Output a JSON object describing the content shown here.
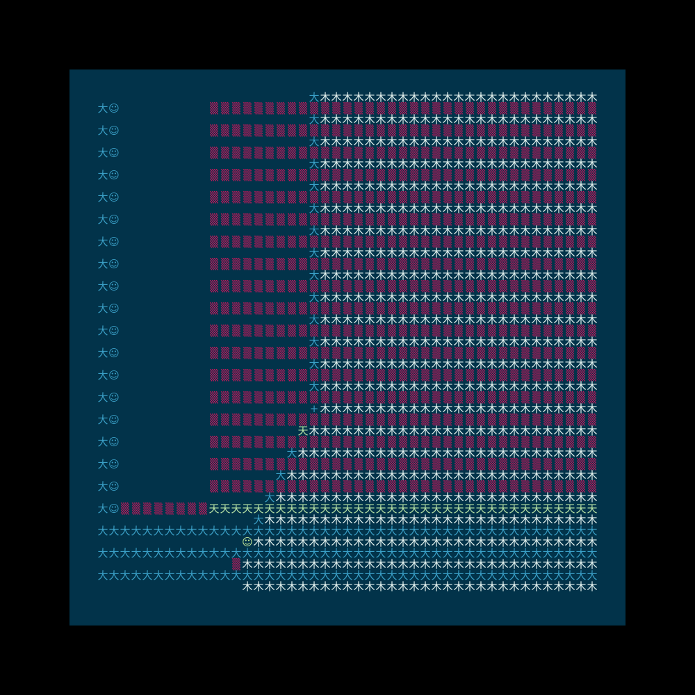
{
  "grid": {
    "background": "#000000",
    "panel": "#02334a",
    "glyph_colors": {
      "大": "#3a9fc6",
      "木": "#e4f2ef",
      "天": "#b9e4a6",
      "☺": "#c8ec9a",
      "+": "#3a9fc6",
      "▒": "#c2185b"
    },
    "rows": [
      [
        "                   ",
        "大",
        "木木木木木木木木木木木木木木木木木木木木木木木木木"
      ],
      [
        "大☺",
        "        ",
        "▒▒▒▒▒▒▒▒▒▒▒▒▒▒▒▒▒▒▒▒▒▒▒▒▒▒▒▒▒▒▒▒▒▒▒"
      ],
      [
        "                   ",
        "大",
        "木木木木木木木木木木木木木木木木木木木木木木木木木"
      ],
      [
        "大☺",
        "        ",
        "▒▒▒▒▒▒▒▒▒▒▒▒▒▒▒▒▒▒▒▒▒▒▒▒▒▒▒▒▒▒▒▒▒▒▒"
      ],
      [
        "                   ",
        "大",
        "木木木木木木木木木木木木木木木木木木木木木木木木木"
      ],
      [
        "大☺",
        "        ",
        "▒▒▒▒▒▒▒▒▒▒▒▒▒▒▒▒▒▒▒▒▒▒▒▒▒▒▒▒▒▒▒▒▒▒▒"
      ],
      [
        "                   ",
        "大",
        "木木木木木木木木木木木木木木木木木木木木木木木木木"
      ],
      [
        "大☺",
        "        ",
        "▒▒▒▒▒▒▒▒▒▒▒▒▒▒▒▒▒▒▒▒▒▒▒▒▒▒▒▒▒▒▒▒▒▒▒"
      ],
      [
        "                   ",
        "大",
        "木木木木木木木木木木木木木木木木木木木木木木木木木"
      ],
      [
        "大☺",
        "        ",
        "▒▒▒▒▒▒▒▒▒▒▒▒▒▒▒▒▒▒▒▒▒▒▒▒▒▒▒▒▒▒▒▒▒▒▒"
      ],
      [
        "                   ",
        "大",
        "木木木木木木木木木木木木木木木木木木木木木木木木木"
      ],
      [
        "大☺",
        "        ",
        "▒▒▒▒▒▒▒▒▒▒▒▒▒▒▒▒▒▒▒▒▒▒▒▒▒▒▒▒▒▒▒▒▒▒▒"
      ],
      [
        "                   ",
        "大",
        "木木木木木木木木木木木木木木木木木木木木木木木木木"
      ],
      [
        "大☺",
        "        ",
        "▒▒▒▒▒▒▒▒▒▒▒▒▒▒▒▒▒▒▒▒▒▒▒▒▒▒▒▒▒▒▒▒▒▒▒"
      ],
      [
        "                   ",
        "大",
        "木木木木木木木木木木木木木木木木木木木木木木木木木"
      ],
      [
        "大☺",
        "        ",
        "▒▒▒▒▒▒▒▒▒▒▒▒▒▒▒▒▒▒▒▒▒▒▒▒▒▒▒▒▒▒▒▒▒▒▒"
      ],
      [
        "                   ",
        "大",
        "木木木木木木木木木木木木木木木木木木木木木木木木木"
      ],
      [
        "大☺",
        "        ",
        "▒▒▒▒▒▒▒▒▒▒▒▒▒▒▒▒▒▒▒▒▒▒▒▒▒▒▒▒▒▒▒▒▒▒▒"
      ],
      [
        "                   ",
        "大",
        "木木木木木木木木木木木木木木木木木木木木木木木木木"
      ],
      [
        "大☺",
        "        ",
        "▒▒▒▒▒▒▒▒▒▒▒▒▒▒▒▒▒▒▒▒▒▒▒▒▒▒▒▒▒▒▒▒▒▒▒"
      ],
      [
        "                   ",
        "大",
        "木木木木木木木木木木木木木木木木木木木木木木木木木"
      ],
      [
        "大☺",
        "        ",
        "▒▒▒▒▒▒▒▒▒▒▒▒▒▒▒▒▒▒▒▒▒▒▒▒▒▒▒▒▒▒▒▒▒▒▒"
      ],
      [
        "                   ",
        "大",
        "木木木木木木木木木木木木木木木木木木木木木木木木木"
      ],
      [
        "大☺",
        "        ",
        "▒▒▒▒▒▒▒▒▒▒▒▒▒▒▒▒▒▒▒▒▒▒▒▒▒▒▒▒▒▒▒▒▒▒▒"
      ],
      [
        "                   ",
        "大",
        "木木木木木木木木木木木木木木木木木木木木木木木木木"
      ],
      [
        "大☺",
        "        ",
        "▒▒▒▒▒▒▒▒▒▒▒▒▒▒▒▒▒▒▒▒▒▒▒▒▒▒▒▒▒▒▒▒▒▒▒"
      ],
      [
        "                   ",
        "大",
        "木木木木木木木木木木木木木木木木木木木木木木木木木"
      ],
      [
        "大☺",
        "        ",
        "▒▒▒▒▒▒▒▒▒▒▒▒▒▒▒▒▒▒▒▒▒▒▒▒▒▒▒▒▒▒▒▒▒▒▒"
      ],
      [
        "                   ",
        "+",
        "木木木木木木木木木木木木木木木木木木木木木木木木木"
      ],
      [
        "大☺",
        "        ",
        "▒▒▒▒▒▒▒▒▒▒▒▒▒▒▒▒▒▒▒▒▒▒▒▒▒▒▒▒▒▒▒▒▒▒▒"
      ],
      [
        "                  ",
        "天",
        "木木木木木木木木木木木木木木木木木木木木木木木木木木"
      ],
      [
        "大☺",
        "        ",
        "▒▒▒▒▒▒▒▒▒▒▒▒▒▒▒▒▒▒▒▒▒▒▒▒▒▒▒▒▒▒▒▒▒▒▒"
      ],
      [
        "                 ",
        "大",
        "木木木木木木木木木木木木木木木木木木木木木木木木木木木"
      ],
      [
        "大☺",
        "        ",
        "▒▒▒▒▒▒▒▒▒▒▒▒▒▒▒▒▒▒▒▒▒▒▒▒▒▒▒▒▒▒▒▒▒▒▒"
      ],
      [
        "                ",
        "大",
        "木木木木木木木木木木木木木木木木木木木木木木木木木木木木"
      ],
      [
        "大☺",
        "        ",
        "▒▒▒▒▒▒▒▒▒▒▒▒▒▒▒▒▒▒▒▒▒▒▒▒▒▒▒▒▒▒▒▒▒▒▒"
      ],
      [
        "               ",
        "大",
        "木木木木木木木木木木木木木木木木木木木木木木木木木木木木木"
      ],
      [
        "大☺",
        "▒▒▒▒▒▒▒▒",
        "天天天天天天天天天天天天天天天天天天天天天天天天天天天天天天天天天天天"
      ],
      [
        "              ",
        "大",
        "木木木木木木木木木木木木木木木木木木木木木木木木木木木木木木"
      ],
      [
        "大大大大大大大大大大大大大大大大大大大大大大大大大大大大大大大大大大大大大大大大大大大大大"
      ],
      [
        "             ",
        "☺",
        "木木木木木木木木木木木木木木木木木木木木木木木木木木木木木木木"
      ],
      [
        "大大大大大大大大大大大大大大大大大大大大大大大大大大大大大大大大大大大大大大大大大大大大大"
      ],
      [
        "            ",
        "▒",
        "木木木木木木木木木木木木木木木木木木木木木木木木木木木木木木木木"
      ],
      [
        "大大大大大大大大大大大大大大大大大大大大大大大大大大大大大大大大大大大大大大大大大大大大大"
      ],
      [
        "             ",
        "木木木木木木木木木木木木木木木木木木木木木木木木木木木木木木木木"
      ]
    ]
  }
}
